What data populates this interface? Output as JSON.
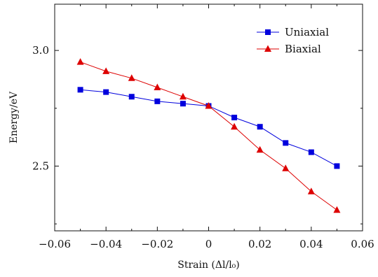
{
  "chart_data": {
    "type": "line",
    "xlabel": "Strain (Δl/l₀)",
    "ylabel": "Energy/eV",
    "xlim": [
      -0.06,
      0.06
    ],
    "ylim": [
      2.22,
      3.2
    ],
    "xticks": [
      -0.06,
      -0.04,
      -0.02,
      0,
      0.02,
      0.04,
      0.06
    ],
    "xtick_labels": [
      "−0.06",
      "−0.04",
      "−0.02",
      "0",
      "0.02",
      "0.04",
      "0.06"
    ],
    "yticks": [
      2.5,
      3.0
    ],
    "ytick_labels": [
      "2.5",
      "3.0"
    ],
    "grid": false,
    "legend_position": "top-right",
    "x": [
      -0.05,
      -0.04,
      -0.03,
      -0.02,
      -0.01,
      0,
      0.01,
      0.02,
      0.03,
      0.04,
      0.05
    ],
    "series": [
      {
        "name": "Uniaxial",
        "color": "#0000dd",
        "marker": "square",
        "values": [
          2.83,
          2.82,
          2.8,
          2.78,
          2.77,
          2.76,
          2.71,
          2.67,
          2.6,
          2.56,
          2.5
        ]
      },
      {
        "name": "Biaxial",
        "color": "#dd0000",
        "marker": "triangle",
        "values": [
          2.95,
          2.91,
          2.88,
          2.84,
          2.8,
          2.76,
          2.67,
          2.57,
          2.49,
          2.39,
          2.31
        ]
      }
    ]
  }
}
